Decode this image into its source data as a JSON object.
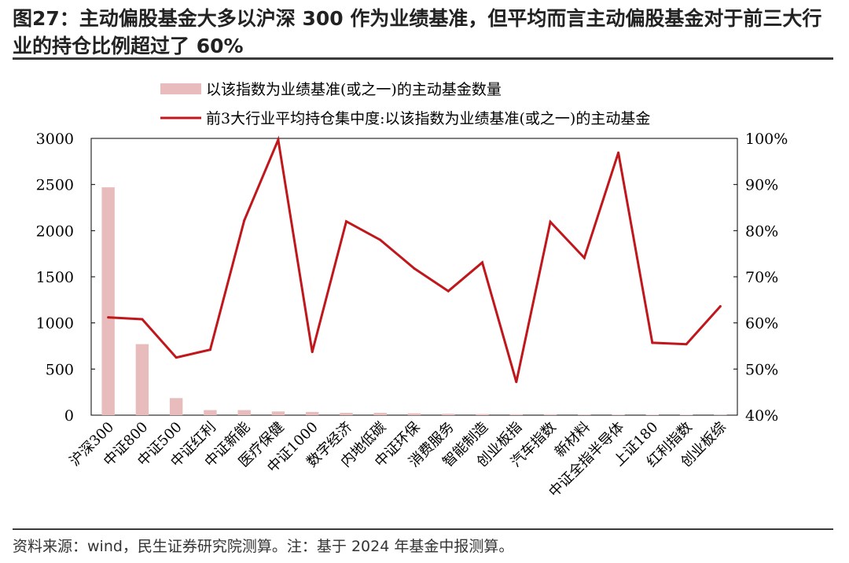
{
  "header": {
    "title": "图27：主动偏股基金大多以沪深 300 作为业绩基准，但平均而言主动偏股基金对于前三大行业的持仓比例超过了 60%"
  },
  "footer": {
    "source": "资料来源：wind，民生证券研究院测算。注：基于 2024 年基金中报测算。"
  },
  "chart_data": {
    "type": "bar+line",
    "categories": [
      "沪深300",
      "中证800",
      "中证500",
      "中证红利",
      "中证新能",
      "医疗保健",
      "中证1000",
      "数字经济",
      "内地低碳",
      "中证环保",
      "消费服务",
      "智能制造",
      "创业板指",
      "汽车指数",
      "新材料",
      "中证全指半导体",
      "上证180",
      "红利指数",
      "创业板综"
    ],
    "series": [
      {
        "name": "以该指数为业绩基准(或之一)的主动基金数量",
        "type": "bar",
        "axis": "left",
        "color": "#e8bcbc",
        "values": [
          2470,
          770,
          185,
          55,
          55,
          40,
          35,
          25,
          25,
          20,
          15,
          12,
          10,
          10,
          8,
          6,
          5,
          4,
          3
        ]
      },
      {
        "name": "前3大行业平均持仓集中度:以该指数为业绩基准(或之一)的主动基金",
        "type": "line",
        "axis": "right",
        "color": "#c0171c",
        "values": [
          61.2,
          60.8,
          52.5,
          54.2,
          82.2,
          99.7,
          53.7,
          82.0,
          78.0,
          71.8,
          66.9,
          73.1,
          47.2,
          81.9,
          74.1,
          96.9,
          55.7,
          55.4,
          63.6
        ]
      }
    ],
    "left_axis": {
      "min": 0,
      "max": 3000,
      "ticks": [
        "0",
        "500",
        "1000",
        "1500",
        "2000",
        "2500",
        "3000"
      ]
    },
    "right_axis": {
      "min": 40,
      "max": 100,
      "ticks": [
        "40%",
        "50%",
        "60%",
        "70%",
        "80%",
        "90%",
        "100%"
      ]
    },
    "legend_position": "top"
  }
}
